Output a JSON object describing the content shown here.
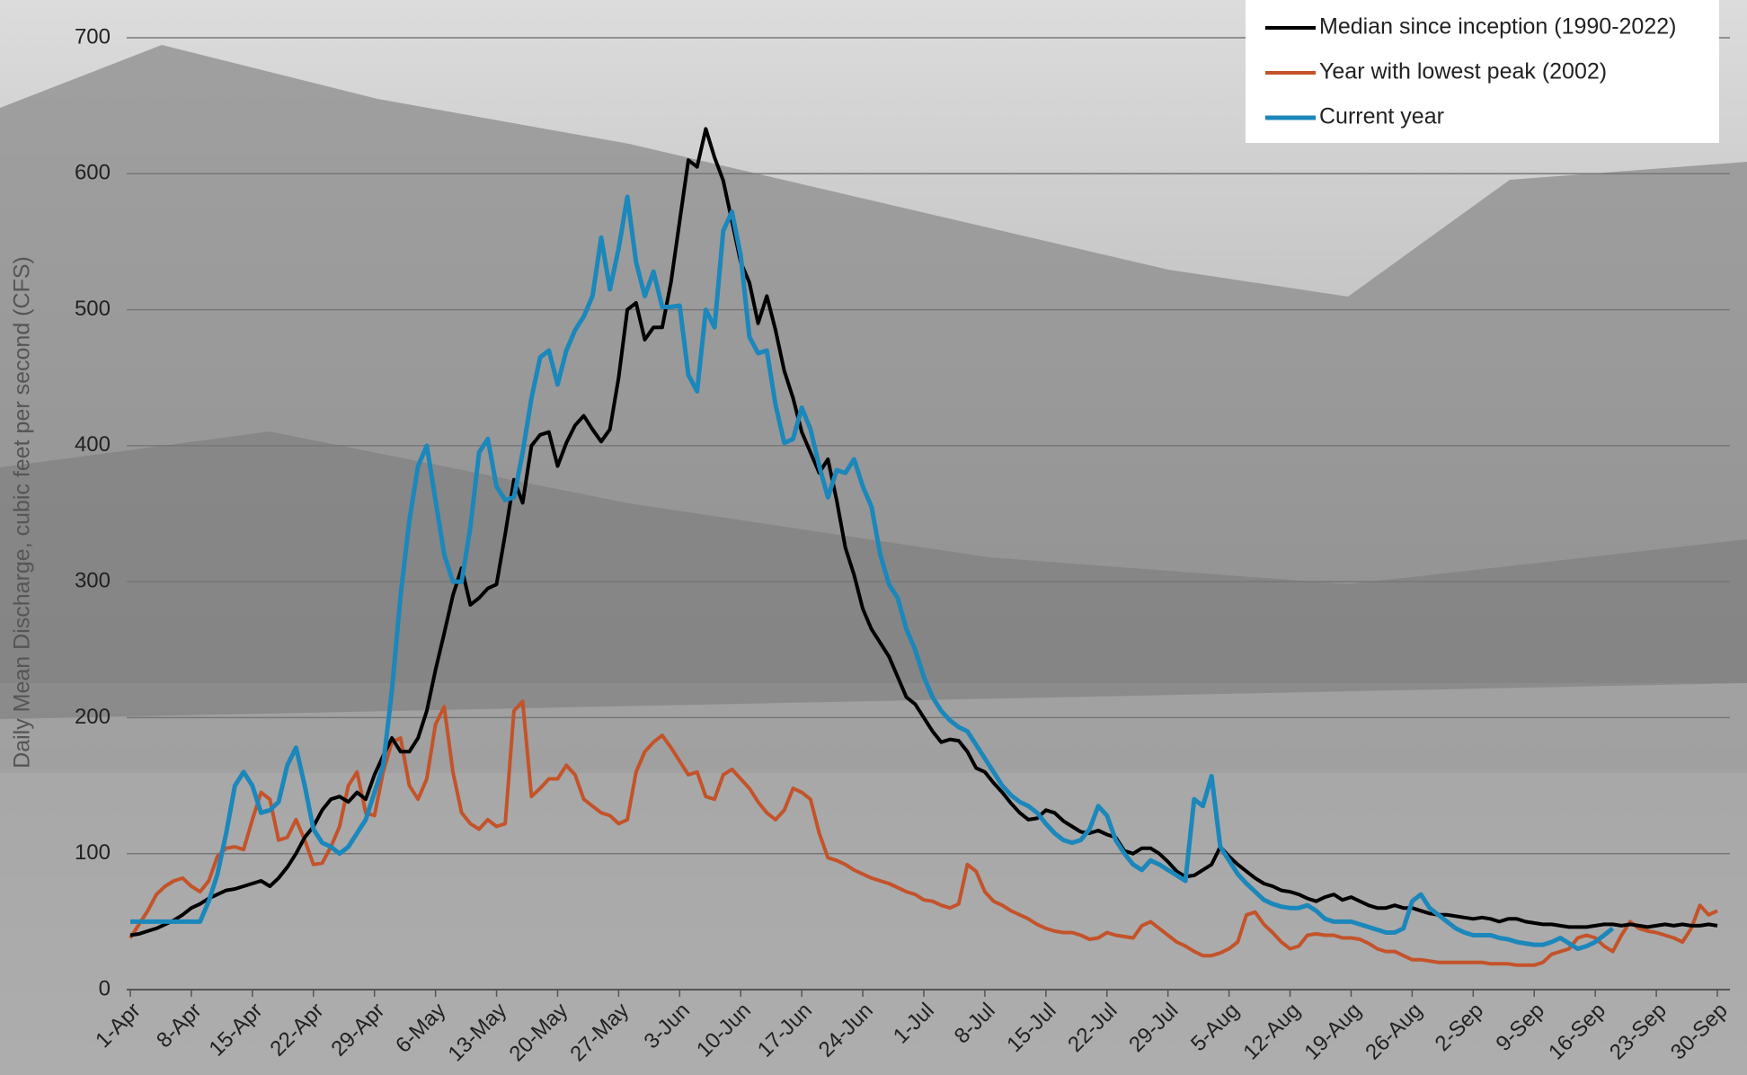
{
  "chart_data": {
    "type": "line",
    "y_label": "Daily Mean Discharge, cubic feet per second (CFS)",
    "categories": [
      "1-Apr",
      null,
      null,
      null,
      null,
      null,
      null,
      "8-Apr",
      null,
      null,
      null,
      null,
      null,
      null,
      "15-Apr",
      null,
      null,
      null,
      null,
      null,
      null,
      "22-Apr",
      null,
      null,
      null,
      null,
      null,
      null,
      "29-Apr",
      null,
      null,
      null,
      null,
      null,
      null,
      "6-May",
      null,
      null,
      null,
      null,
      null,
      null,
      "13-May",
      null,
      null,
      null,
      null,
      null,
      null,
      "20-May",
      null,
      null,
      null,
      null,
      null,
      null,
      "27-May",
      null,
      null,
      null,
      null,
      null,
      null,
      "3-Jun",
      null,
      null,
      null,
      null,
      null,
      null,
      "10-Jun",
      null,
      null,
      null,
      null,
      null,
      null,
      "17-Jun",
      null,
      null,
      null,
      null,
      null,
      null,
      "24-Jun",
      null,
      null,
      null,
      null,
      null,
      null,
      "1-Jul",
      null,
      null,
      null,
      null,
      null,
      null,
      "8-Jul",
      null,
      null,
      null,
      null,
      null,
      null,
      "15-Jul",
      null,
      null,
      null,
      null,
      null,
      null,
      "22-Jul",
      null,
      null,
      null,
      null,
      null,
      null,
      "29-Jul",
      null,
      null,
      null,
      null,
      null,
      null,
      "5-Aug",
      null,
      null,
      null,
      null,
      null,
      null,
      "12-Aug",
      null,
      null,
      null,
      null,
      null,
      null,
      "19-Aug",
      null,
      null,
      null,
      null,
      null,
      null,
      "26-Aug",
      null,
      null,
      null,
      null,
      null,
      null,
      "2-Sep",
      null,
      null,
      null,
      null,
      null,
      null,
      "9-Sep",
      null,
      null,
      null,
      null,
      null,
      null,
      "16-Sep",
      null,
      null,
      null,
      null,
      null,
      null,
      "23-Sep",
      null,
      null,
      null,
      null,
      null,
      null,
      "30-Sep"
    ],
    "series": [
      {
        "name": "Median since inception (1990-2022)",
        "color": "#000000",
        "values": [
          40,
          41,
          43,
          45,
          48,
          51,
          55,
          60,
          63,
          67,
          70,
          73,
          74,
          76,
          78,
          80,
          76,
          82,
          90,
          100,
          112,
          120,
          132,
          140,
          142,
          138,
          145,
          140,
          158,
          172,
          185,
          175,
          175,
          185,
          205,
          235,
          262,
          290,
          310,
          283,
          288,
          295,
          298,
          335,
          375,
          358,
          400,
          408,
          410,
          385,
          402,
          415,
          422,
          412,
          403,
          412,
          450,
          500,
          505,
          478,
          487,
          487,
          520,
          565,
          610,
          605,
          633,
          612,
          595,
          565,
          535,
          520,
          490,
          510,
          485,
          455,
          435,
          410,
          395,
          380,
          390,
          360,
          325,
          305,
          280,
          265,
          255,
          245,
          230,
          215,
          210,
          200,
          190,
          182,
          184,
          183,
          175,
          163,
          160,
          152,
          145,
          137,
          130,
          125,
          126,
          132,
          130,
          124,
          120,
          116,
          115,
          117,
          114,
          112,
          102,
          100,
          104,
          104,
          100,
          94,
          87,
          83,
          84,
          88,
          92,
          105,
          98,
          92,
          87,
          82,
          78,
          76,
          73,
          72,
          70,
          67,
          65,
          68,
          70,
          66,
          68,
          65,
          62,
          60,
          60,
          62,
          60,
          60,
          58,
          56,
          55,
          55,
          54,
          53,
          52,
          53,
          52,
          50,
          52,
          52,
          50,
          49,
          48,
          48,
          47,
          46,
          46,
          46,
          47,
          48,
          48,
          47,
          48,
          47,
          46,
          47,
          48,
          47,
          48,
          47,
          47,
          48,
          47
        ]
      },
      {
        "name": "Year with lowest peak (2002)",
        "color": "#c4532a",
        "values": [
          38,
          48,
          58,
          70,
          76,
          80,
          82,
          76,
          72,
          80,
          98,
          104,
          105,
          103,
          125,
          145,
          140,
          110,
          112,
          125,
          110,
          92,
          93,
          105,
          120,
          150,
          160,
          130,
          128,
          160,
          182,
          185,
          150,
          140,
          155,
          195,
          208,
          160,
          130,
          122,
          118,
          125,
          120,
          122,
          205,
          212,
          142,
          148,
          155,
          155,
          165,
          158,
          140,
          135,
          130,
          128,
          122,
          125,
          160,
          175,
          182,
          187,
          178,
          168,
          158,
          160,
          142,
          140,
          158,
          162,
          155,
          148,
          138,
          130,
          125,
          132,
          148,
          145,
          140,
          115,
          97,
          95,
          92,
          88,
          85,
          82,
          80,
          78,
          75,
          72,
          70,
          66,
          65,
          62,
          60,
          63,
          92,
          87,
          72,
          65,
          62,
          58,
          55,
          52,
          48,
          45,
          43,
          42,
          42,
          40,
          37,
          38,
          42,
          40,
          39,
          38,
          47,
          50,
          45,
          40,
          35,
          32,
          28,
          25,
          25,
          27,
          30,
          35,
          55,
          57,
          48,
          42,
          35,
          30,
          32,
          40,
          41,
          40,
          40,
          38,
          38,
          37,
          34,
          30,
          28,
          28,
          25,
          22,
          22,
          21,
          20,
          20,
          20,
          20,
          20,
          20,
          19,
          19,
          19,
          18,
          18,
          18,
          20,
          26,
          28,
          30,
          38,
          40,
          38,
          32,
          28,
          40,
          50,
          45,
          43,
          42,
          40,
          38,
          35,
          45,
          62,
          55,
          58
        ]
      },
      {
        "name": "Current year",
        "color": "#1b87bb",
        "values": [
          50,
          50,
          50,
          50,
          50,
          50,
          50,
          50,
          50,
          65,
          85,
          115,
          150,
          160,
          150,
          130,
          132,
          138,
          165,
          178,
          150,
          118,
          108,
          105,
          100,
          105,
          115,
          125,
          145,
          165,
          220,
          290,
          345,
          385,
          400,
          360,
          320,
          300,
          300,
          340,
          395,
          405,
          370,
          360,
          362,
          395,
          435,
          465,
          470,
          445,
          470,
          485,
          495,
          510,
          553,
          515,
          545,
          583,
          535,
          510,
          528,
          502,
          502,
          503,
          452,
          440,
          500,
          487,
          558,
          572,
          540,
          480,
          468,
          470,
          430,
          402,
          405,
          428,
          412,
          385,
          362,
          382,
          380,
          390,
          370,
          355,
          320,
          298,
          288,
          265,
          250,
          230,
          215,
          205,
          198,
          193,
          190,
          180,
          170,
          160,
          150,
          143,
          138,
          135,
          130,
          122,
          115,
          110,
          108,
          110,
          118,
          135,
          128,
          110,
          100,
          92,
          88,
          95,
          92,
          88,
          84,
          80,
          140,
          135,
          157,
          105,
          95,
          85,
          78,
          72,
          66,
          63,
          61,
          60,
          60,
          62,
          58,
          52,
          50,
          50,
          50,
          48,
          46,
          44,
          42,
          42,
          45,
          65,
          70,
          60,
          55,
          50,
          45,
          42,
          40,
          40,
          40,
          38,
          37,
          35,
          34,
          33,
          33,
          35,
          38,
          34,
          30,
          32,
          35,
          40,
          45,
          null,
          null,
          null,
          null,
          null,
          null,
          null,
          null,
          null,
          null,
          null,
          null
        ]
      }
    ],
    "ylim": [
      0,
      700
    ],
    "yticks": [
      0,
      100,
      200,
      300,
      400,
      500,
      600,
      700
    ],
    "grid": true,
    "legend": "upper right"
  }
}
